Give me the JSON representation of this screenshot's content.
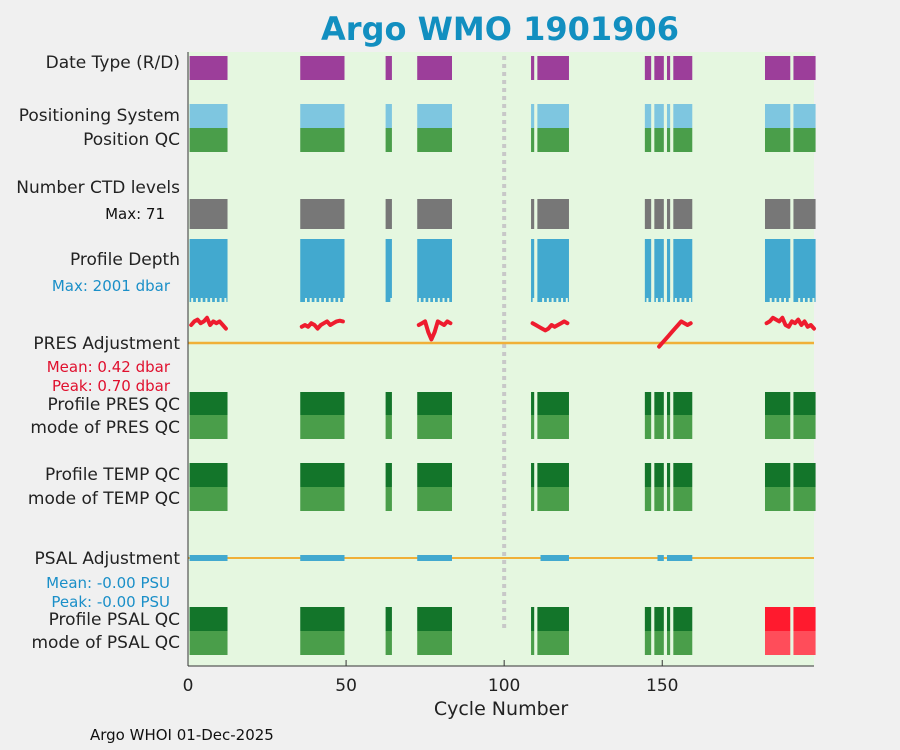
{
  "title": "Argo WMO 1901906",
  "rows": {
    "date_type": "Date Type (R/D)",
    "positioning": "Positioning System",
    "position_qc": "Position QC",
    "ctd_levels": "Number CTD levels",
    "ctd_max": "Max: 71",
    "profile_depth": "Profile Depth",
    "depth_max": "Max: 2001 dbar",
    "pres_adj": "PRES Adjustment",
    "pres_mean": "Mean: 0.42 dbar",
    "pres_peak": "Peak: 0.70 dbar",
    "profile_pres_qc": "Profile PRES QC",
    "mode_pres_qc": "mode of PRES QC",
    "profile_temp_qc": "Profile TEMP QC",
    "mode_temp_qc": "mode of TEMP QC",
    "psal_adj": "PSAL Adjustment",
    "psal_mean": "Mean: -0.00 PSU",
    "psal_peak": "Peak: -0.00 PSU",
    "profile_psal_qc": "Profile PSAL QC",
    "mode_psal_qc": "mode of PSAL QC"
  },
  "footer": "Argo WHOI 01-Dec-2025",
  "colors": {
    "title": "#128fc0",
    "plot_bg": "#e5f7e0",
    "date_type": "#9c3e9a",
    "positioning": "#7ec6e0",
    "qc_dark": "#13752a",
    "qc_mid": "#4a9e4a",
    "ctd": "#777777",
    "depth": "#42a9cf",
    "pres_line": "#f0b038",
    "adj_trace": "#ee1c2e",
    "psal_bar": "#42a9cf",
    "red_qc": "#ff1a2e",
    "red_qc_mode": "#ff4d5a",
    "pres_text": "#e0102e",
    "psal_text": "#1a8fc8"
  },
  "chart_data": {
    "type": "timeline",
    "xlabel": "Cycle Number",
    "xlim": [
      0,
      198
    ],
    "xticks": [
      0,
      50,
      100,
      150
    ],
    "dashed_line_at": 100,
    "cycle_groups": [
      [
        1,
        12
      ],
      [
        36,
        49
      ],
      [
        63,
        64
      ],
      [
        73,
        83
      ],
      [
        109,
        120
      ],
      [
        143,
        159
      ],
      [
        183,
        198
      ]
    ],
    "gaps_within_groups": [
      [
        110,
        111
      ],
      [
        143,
        145
      ],
      [
        147,
        148
      ],
      [
        151,
        152
      ],
      [
        153,
        154
      ],
      [
        191,
        192
      ]
    ],
    "ctd_levels_max": 71,
    "profile_depth_max_dbar": 2001,
    "pres_adjustment": {
      "mean_dbar": 0.42,
      "peak_dbar": 0.7
    },
    "psal_adjustment": {
      "mean_psu": -0.0,
      "peak_psu": -0.0,
      "segments": [
        [
          1,
          12
        ],
        [
          36,
          49
        ],
        [
          73,
          83
        ],
        [
          112,
          120
        ],
        [
          149,
          150
        ],
        [
          152,
          159
        ]
      ]
    },
    "psal_qc_bad_from": 183,
    "pres_adjustment_trace": [
      {
        "cycles": [
          1,
          12
        ],
        "y": [
          0.5,
          0.6,
          0.65,
          0.55,
          0.6,
          0.7,
          0.5,
          0.6,
          0.55,
          0.6,
          0.5,
          0.4
        ]
      },
      {
        "cycles": [
          36,
          49
        ],
        "y": [
          0.45,
          0.5,
          0.45,
          0.55,
          0.5,
          0.4,
          0.5,
          0.55,
          0.6,
          0.5,
          0.55,
          0.6,
          0.62,
          0.6
        ]
      },
      {
        "cycles": [
          73,
          83
        ],
        "y": [
          0.5,
          0.55,
          0.6,
          0.3,
          0.1,
          0.3,
          0.6,
          0.55,
          0.5,
          0.6,
          0.55
        ]
      },
      {
        "cycles": [
          109,
          120
        ],
        "y": [
          0.55,
          0.5,
          0.45,
          0.4,
          0.35,
          0.4,
          0.5,
          0.45,
          0.5,
          0.55,
          0.6,
          0.55
        ]
      },
      {
        "cycles": [
          149,
          159
        ],
        "y": [
          -0.1,
          0.0,
          0.1,
          0.2,
          0.3,
          0.4,
          0.5,
          0.6,
          0.55,
          0.5,
          0.55
        ]
      },
      {
        "cycles": [
          183,
          198
        ],
        "y": [
          0.55,
          0.6,
          0.7,
          0.65,
          0.6,
          0.7,
          0.5,
          0.45,
          0.6,
          0.55,
          0.65,
          0.5,
          0.6,
          0.45,
          0.5,
          0.4
        ]
      }
    ]
  }
}
